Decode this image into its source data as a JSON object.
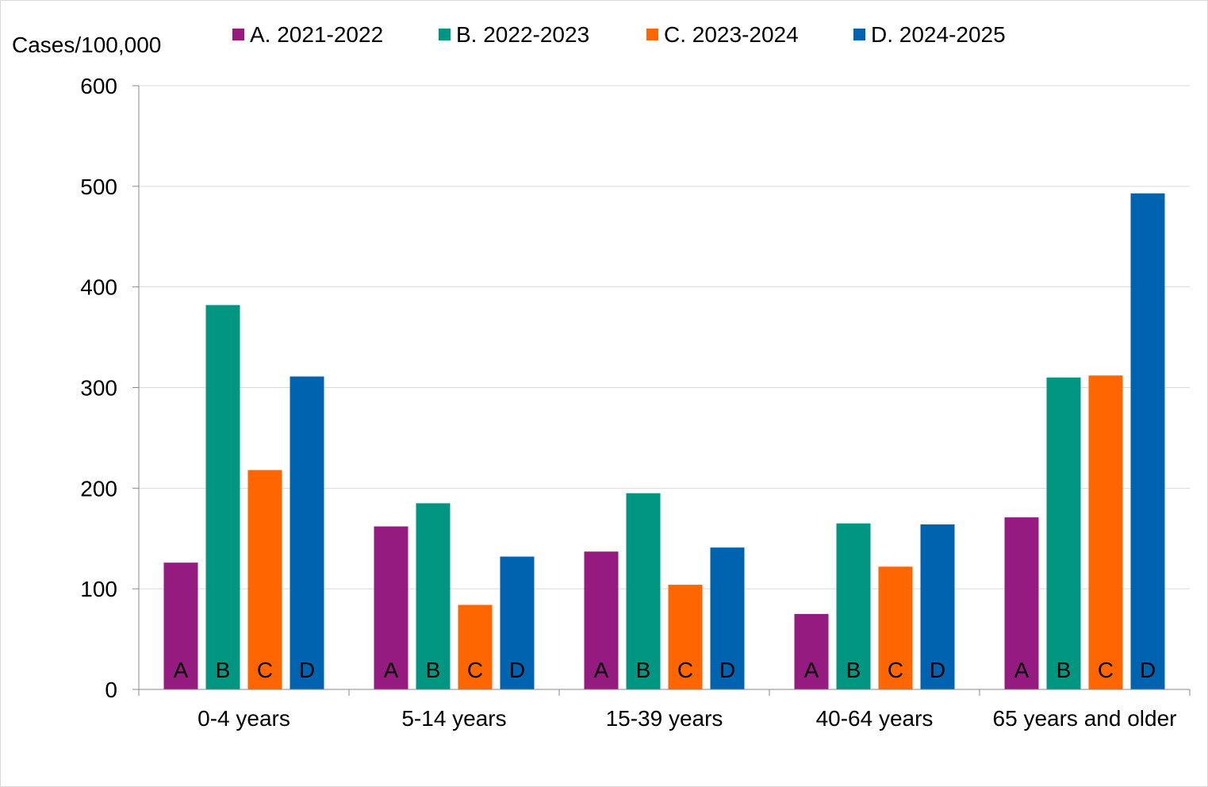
{
  "chart_data": {
    "type": "bar",
    "title": "",
    "xlabel": "",
    "ylabel": "Cases/100,000",
    "ylim": [
      0,
      600
    ],
    "yticks": [
      0,
      100,
      200,
      300,
      400,
      500,
      600
    ],
    "grid": true,
    "legend_position": "top",
    "categories": [
      "0-4 years",
      "5-14 years",
      "15-39 years",
      "40-64 years",
      "65 years and older"
    ],
    "series": [
      {
        "name": "A. 2021-2022",
        "letter": "A",
        "color": "#951b81",
        "values": [
          126,
          162,
          137,
          75,
          171
        ]
      },
      {
        "name": "B. 2022-2023",
        "letter": "B",
        "color": "#009681",
        "values": [
          382,
          185,
          195,
          165,
          310
        ]
      },
      {
        "name": "C. 2023-2024",
        "letter": "C",
        "color": "#ff6600",
        "values": [
          218,
          84,
          104,
          122,
          312
        ]
      },
      {
        "name": "D. 2024-2025",
        "letter": "D",
        "color": "#0063af",
        "values": [
          311,
          132,
          141,
          164,
          493
        ]
      }
    ]
  }
}
